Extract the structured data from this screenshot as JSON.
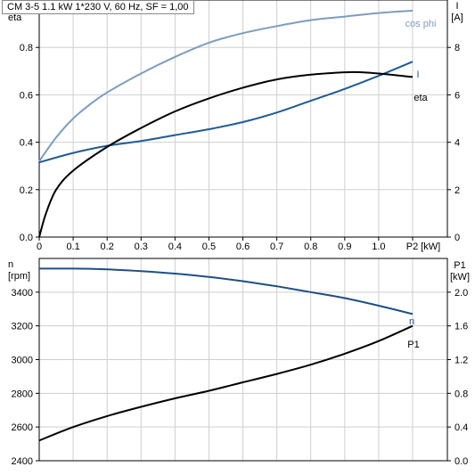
{
  "title": "CM 3-5   1.1 kW   1*230 V, 60 Hz, SF = 1,00",
  "colors": {
    "cos_phi": "#7c9dbf",
    "current": "#1f5b96",
    "eta": "#000000",
    "speed": "#1f4e85",
    "power": "#000000",
    "grid": "#cfcfcf",
    "axis": "#000000"
  },
  "chart_data": [
    {
      "type": "line",
      "name": "efficiency",
      "xlabel": "P2 [kW]",
      "xlim": [
        0,
        1.1
      ],
      "x_ticks": [
        "0",
        "0.1",
        "0.2",
        "0.3",
        "0.4",
        "0.5",
        "0.6",
        "0.7",
        "0.8",
        "0.9",
        "1.0"
      ],
      "ylabel_left": [
        "cos phi",
        "eta"
      ],
      "ylim_left": [
        0,
        1.0
      ],
      "y_ticks_left": [
        "0.0",
        "0.2",
        "0.4",
        "0.6",
        "0.8"
      ],
      "ylabel_right": [
        "I",
        "[A]"
      ],
      "ylim_right": [
        0,
        10
      ],
      "y_ticks_right": [
        "0",
        "2",
        "4",
        "6",
        "8"
      ],
      "grid": true,
      "series": [
        {
          "name": "cos phi",
          "axis": "left",
          "color": "#7c9dbf",
          "x": [
            0,
            0.05,
            0.1,
            0.15,
            0.2,
            0.3,
            0.4,
            0.5,
            0.6,
            0.7,
            0.8,
            0.9,
            1.0,
            1.1
          ],
          "y": [
            0.32,
            0.42,
            0.5,
            0.56,
            0.61,
            0.69,
            0.76,
            0.82,
            0.86,
            0.89,
            0.915,
            0.93,
            0.945,
            0.955
          ]
        },
        {
          "name": "I",
          "axis": "right",
          "color": "#1f5b96",
          "x": [
            0,
            0.1,
            0.2,
            0.3,
            0.4,
            0.5,
            0.6,
            0.7,
            0.8,
            0.9,
            1.0,
            1.1
          ],
          "y": [
            3.15,
            3.55,
            3.85,
            4.05,
            4.3,
            4.55,
            4.85,
            5.25,
            5.75,
            6.25,
            6.8,
            7.4
          ]
        },
        {
          "name": "eta",
          "axis": "left",
          "color": "#000000",
          "x": [
            0,
            0.02,
            0.05,
            0.1,
            0.2,
            0.3,
            0.4,
            0.5,
            0.6,
            0.7,
            0.8,
            0.9,
            0.95,
            1.0,
            1.1
          ],
          "y": [
            0,
            0.1,
            0.2,
            0.28,
            0.38,
            0.46,
            0.53,
            0.585,
            0.63,
            0.665,
            0.685,
            0.695,
            0.695,
            0.69,
            0.675
          ]
        }
      ]
    },
    {
      "type": "line",
      "name": "speed-power",
      "xlim": [
        0,
        1.1
      ],
      "ylabel_left": [
        "n",
        "[rpm]"
      ],
      "ylim_left": [
        2400,
        3600
      ],
      "y_ticks_left": [
        "2400",
        "2600",
        "2800",
        "3000",
        "3200",
        "3400"
      ],
      "ylabel_right": [
        "P1",
        "[kW]"
      ],
      "ylim_right": [
        0,
        2.4
      ],
      "y_ticks_right": [
        "0.0",
        "0.4",
        "0.8",
        "1.2",
        "1.6",
        "2.0"
      ],
      "grid": true,
      "series": [
        {
          "name": "n",
          "axis": "left",
          "color": "#1f4e85",
          "x": [
            0,
            0.1,
            0.2,
            0.3,
            0.4,
            0.5,
            0.6,
            0.7,
            0.8,
            0.9,
            1.0,
            1.1
          ],
          "y": [
            3540,
            3540,
            3535,
            3525,
            3510,
            3490,
            3465,
            3435,
            3400,
            3365,
            3320,
            3270
          ]
        },
        {
          "name": "P1",
          "axis": "right",
          "color": "#000000",
          "x": [
            0,
            0.1,
            0.2,
            0.3,
            0.4,
            0.5,
            0.6,
            0.7,
            0.8,
            0.9,
            1.0,
            1.1
          ],
          "y": [
            0.24,
            0.4,
            0.53,
            0.64,
            0.74,
            0.83,
            0.93,
            1.03,
            1.14,
            1.27,
            1.42,
            1.6
          ]
        }
      ]
    }
  ]
}
